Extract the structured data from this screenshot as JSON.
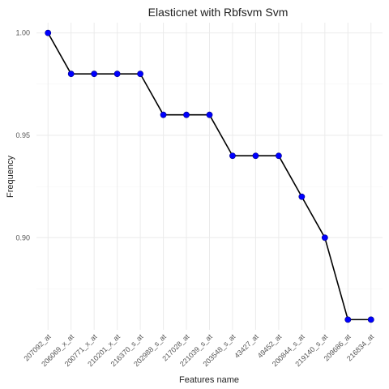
{
  "chart_data": {
    "type": "line",
    "title": "Elasticnet with Rbfsvm Svm",
    "xlabel": "Features name",
    "ylabel": "Frequency",
    "categories": [
      "207092_at",
      "206069_x_at",
      "200771_x_at",
      "210201_x_at",
      "216370_s_at",
      "202988_s_at",
      "217028_at",
      "221039_s_at",
      "203548_s_at",
      "43427_at",
      "49452_at",
      "200844_s_at",
      "219140_s_at",
      "209686_at",
      "216834_at"
    ],
    "values": [
      1.0,
      0.98,
      0.98,
      0.98,
      0.98,
      0.96,
      0.96,
      0.96,
      0.94,
      0.94,
      0.94,
      0.92,
      0.9,
      0.86,
      0.86
    ],
    "yticks": [
      0.9,
      0.95,
      1.0
    ],
    "yticklabels": [
      "0.90",
      "0.95",
      "1.00"
    ],
    "ylim": [
      0.855,
      1.005
    ],
    "grid": true,
    "line_color": "#000000",
    "point_color": "#0000ff"
  }
}
